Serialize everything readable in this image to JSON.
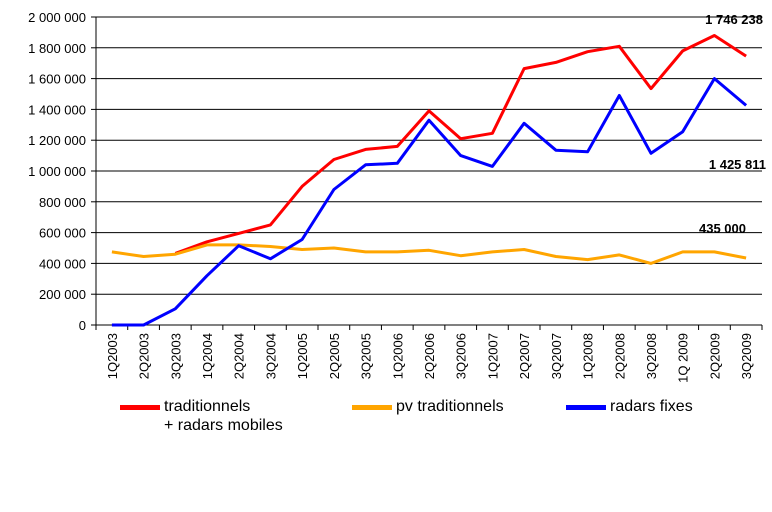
{
  "chart_data": {
    "type": "line",
    "categories": [
      "1Q2003",
      "2Q2003",
      "3Q2003",
      "1Q2004",
      "2Q2004",
      "3Q2004",
      "1Q2005",
      "2Q2005",
      "3Q2005",
      "1Q2006",
      "2Q2006",
      "3Q2006",
      "1Q2007",
      "2Q2007",
      "3Q2007",
      "1Q2008",
      "2Q2008",
      "3Q2008",
      "1Q 2009",
      "2Q2009",
      "3Q2009"
    ],
    "series": [
      {
        "name": "traditionnels\n+ radars mobiles",
        "color": "#ff0000",
        "values": [
          null,
          null,
          465000,
          540000,
          595000,
          650000,
          900000,
          1075000,
          1140000,
          1160000,
          1390000,
          1210000,
          1245000,
          1665000,
          1705000,
          1775000,
          1810000,
          1535000,
          1780000,
          1880000,
          1746238
        ]
      },
      {
        "name": "pv traditionnels",
        "color": "#ffa500",
        "values": [
          475000,
          445000,
          460000,
          520000,
          520000,
          510000,
          490000,
          500000,
          475000,
          475000,
          485000,
          450000,
          475000,
          490000,
          445000,
          425000,
          455000,
          400000,
          475000,
          475000,
          435000
        ]
      },
      {
        "name": "radars fixes",
        "color": "#0000ff",
        "values": [
          0,
          0,
          105000,
          320000,
          515000,
          430000,
          555000,
          880000,
          1040000,
          1050000,
          1330000,
          1100000,
          1030000,
          1310000,
          1135000,
          1125000,
          1490000,
          1115000,
          1255000,
          1600000,
          1425811
        ]
      }
    ],
    "yticks": [
      "0",
      "200 000",
      "400 000",
      "600 000",
      "800 000",
      "1 000 000",
      "1 200 000",
      "1 400 000",
      "1 600 000",
      "1 800 000",
      "2 000 000"
    ],
    "ylim": [
      0,
      2000000
    ],
    "grid": true,
    "legend_position": "bottom",
    "annotations": [
      {
        "text": "1 746 238",
        "series": 0
      },
      {
        "text": "1 425 811",
        "series": 2
      },
      {
        "text": "435 000",
        "series": 1
      }
    ]
  }
}
